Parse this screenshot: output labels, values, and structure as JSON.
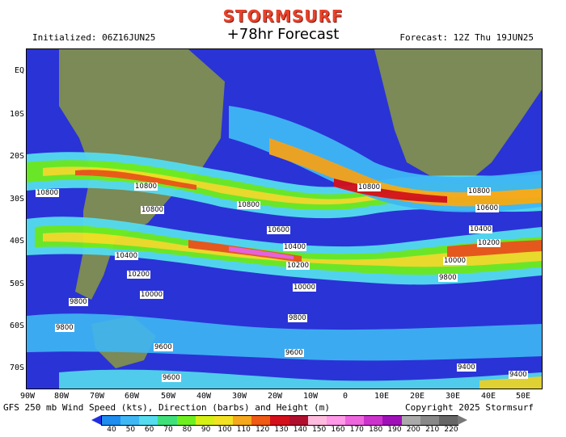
{
  "header": {
    "logo": "STORMSURF",
    "title": "+78hr Forecast",
    "initialized": "Initialized: 06Z16JUN25",
    "forecast": "Forecast: 12Z Thu 19JUN25"
  },
  "map": {
    "lat_labels": [
      "EQ",
      "10S",
      "20S",
      "30S",
      "40S",
      "50S",
      "60S",
      "70S"
    ],
    "lon_labels": [
      "90W",
      "80W",
      "70W",
      "60W",
      "50W",
      "40W",
      "30W",
      "20W",
      "10W",
      "0",
      "10E",
      "20E",
      "30E",
      "40E",
      "50E"
    ],
    "height_labels": [
      "10800",
      "10800",
      "10800",
      "10800",
      "10800",
      "10800",
      "10600",
      "10600",
      "10400",
      "10400",
      "10400",
      "10200",
      "10200",
      "10200",
      "10000",
      "10000",
      "10000",
      "9800",
      "9800",
      "9800",
      "9800",
      "9600",
      "9600",
      "9600",
      "9400",
      "9400"
    ]
  },
  "footer": {
    "description": "GFS 250 mb Wind Speed (kts), Direction (barbs) and Height (m)",
    "copyright": "Copyright 2025 Stormsurf"
  },
  "legend": {
    "unit": "kts",
    "values": [
      "40",
      "50",
      "60",
      "70",
      "80",
      "90",
      "100",
      "110",
      "120",
      "130",
      "140",
      "150",
      "160",
      "170",
      "180",
      "190",
      "200",
      "210",
      "220"
    ],
    "colors": [
      "#1f8cf0",
      "#3fb7f5",
      "#55dcef",
      "#3fe07a",
      "#6ef020",
      "#d6f015",
      "#f3e223",
      "#f5a81c",
      "#ef5a14",
      "#d4101c",
      "#b0102e",
      "#ffbbdd",
      "#ff99e8",
      "#ee66dd",
      "#cc33cc",
      "#a010b8",
      "#aaaaaa",
      "#888888",
      "#666666"
    ]
  }
}
